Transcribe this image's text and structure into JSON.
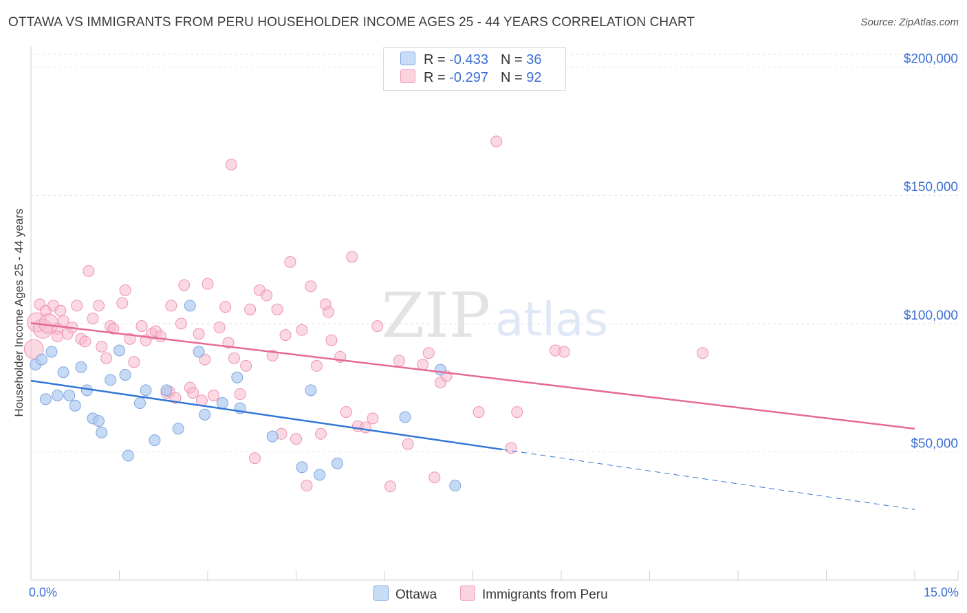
{
  "title": "OTTAWA VS IMMIGRANTS FROM PERU HOUSEHOLDER INCOME AGES 25 - 44 YEARS CORRELATION CHART",
  "source": "Source: ZipAtlas.com",
  "watermark": {
    "zip": "ZIP",
    "atlas": "atlas"
  },
  "legend": {
    "rows": [
      {
        "r_label": "R = ",
        "r_value": "-0.433",
        "n_label": "N = ",
        "n_value": "36",
        "color": "#aecbf2"
      },
      {
        "r_label": "R = ",
        "r_value": "-0.297",
        "n_label": "N = ",
        "n_value": "92",
        "color": "#f7b9cc"
      }
    ]
  },
  "bottom_legend": [
    "Ottawa",
    "Immigrants from Peru"
  ],
  "x_tick_labels": {
    "left": "0.0%",
    "right": "15.0%"
  },
  "chart_data": {
    "type": "scatter",
    "title": "OTTAWA VS IMMIGRANTS FROM PERU HOUSEHOLDER INCOME AGES 25 - 44 YEARS CORRELATION CHART",
    "xlabel": "",
    "ylabel": "Householder Income Ages 25 - 44 years",
    "xlim": [
      0,
      15
    ],
    "ylim": [
      0,
      205000
    ],
    "y_ticks": [
      50000,
      100000,
      150000,
      200000
    ],
    "y_tick_labels": [
      "$50,000",
      "$100,000",
      "$150,000",
      "$200,000"
    ],
    "grid": true,
    "series": [
      {
        "name": "Ottawa",
        "color": "#5b8fd9",
        "fill": "#aecbf2",
        "r": -0.433,
        "n": 36,
        "trend": {
          "x0": 0,
          "y0": 77700,
          "x1": 8.0,
          "y1": 50900,
          "dash_to_x": 15.0,
          "dash_to_y": 27500
        },
        "points": [
          [
            0.08,
            84000
          ],
          [
            0.18,
            86000
          ],
          [
            0.25,
            70500
          ],
          [
            0.35,
            89000
          ],
          [
            0.45,
            72000
          ],
          [
            0.55,
            81000
          ],
          [
            0.65,
            72000
          ],
          [
            0.75,
            68000
          ],
          [
            0.85,
            83000
          ],
          [
            0.95,
            74000
          ],
          [
            1.05,
            63000
          ],
          [
            1.15,
            62000
          ],
          [
            1.2,
            57500
          ],
          [
            1.35,
            78000
          ],
          [
            1.5,
            89500
          ],
          [
            1.6,
            80000
          ],
          [
            1.65,
            48500
          ],
          [
            1.85,
            69000
          ],
          [
            1.95,
            74000
          ],
          [
            2.1,
            54500
          ],
          [
            2.3,
            74000
          ],
          [
            2.5,
            59000
          ],
          [
            2.7,
            107000
          ],
          [
            2.85,
            89000
          ],
          [
            2.95,
            64500
          ],
          [
            3.25,
            69000
          ],
          [
            3.5,
            79000
          ],
          [
            3.55,
            67000
          ],
          [
            4.1,
            56000
          ],
          [
            4.6,
            44000
          ],
          [
            4.75,
            74000
          ],
          [
            4.9,
            41000
          ],
          [
            5.2,
            45500
          ],
          [
            6.35,
            63500
          ],
          [
            6.95,
            82000
          ],
          [
            7.2,
            36800
          ]
        ]
      },
      {
        "name": "Immigrants from Peru",
        "color": "#e96b95",
        "fill": "#f7b9cc",
        "r": -0.297,
        "n": 92,
        "trend": {
          "x0": 0,
          "y0": 100200,
          "x1": 15.0,
          "y1": 59000
        },
        "points": [
          [
            0.05,
            90000
          ],
          [
            0.1,
            100500
          ],
          [
            0.15,
            107500
          ],
          [
            0.2,
            98000
          ],
          [
            0.25,
            105000
          ],
          [
            0.3,
            100000
          ],
          [
            0.38,
            107000
          ],
          [
            0.45,
            98000
          ],
          [
            0.5,
            105000
          ],
          [
            0.55,
            101000
          ],
          [
            0.62,
            96000
          ],
          [
            0.7,
            98500
          ],
          [
            0.78,
            107000
          ],
          [
            0.85,
            94000
          ],
          [
            0.92,
            93000
          ],
          [
            0.98,
            120500
          ],
          [
            1.05,
            102000
          ],
          [
            1.15,
            107000
          ],
          [
            1.2,
            91000
          ],
          [
            1.28,
            86500
          ],
          [
            1.35,
            99000
          ],
          [
            1.4,
            98000
          ],
          [
            1.55,
            108000
          ],
          [
            1.6,
            113000
          ],
          [
            1.68,
            94000
          ],
          [
            1.75,
            85000
          ],
          [
            1.88,
            99000
          ],
          [
            1.95,
            93500
          ],
          [
            2.05,
            96000
          ],
          [
            2.12,
            97000
          ],
          [
            2.2,
            95000
          ],
          [
            2.3,
            73000
          ],
          [
            2.38,
            107000
          ],
          [
            2.45,
            71000
          ],
          [
            2.55,
            100000
          ],
          [
            2.6,
            115000
          ],
          [
            2.7,
            75000
          ],
          [
            2.75,
            73000
          ],
          [
            2.85,
            96000
          ],
          [
            2.9,
            70000
          ],
          [
            2.95,
            86000
          ],
          [
            3.0,
            115500
          ],
          [
            3.1,
            72000
          ],
          [
            3.2,
            98500
          ],
          [
            3.3,
            106500
          ],
          [
            3.35,
            92500
          ],
          [
            3.45,
            86500
          ],
          [
            3.55,
            72500
          ],
          [
            3.65,
            83500
          ],
          [
            3.72,
            105500
          ],
          [
            3.8,
            47500
          ],
          [
            3.88,
            113000
          ],
          [
            4.0,
            111000
          ],
          [
            4.1,
            87500
          ],
          [
            4.18,
            105500
          ],
          [
            4.25,
            57000
          ],
          [
            4.32,
            95500
          ],
          [
            4.4,
            124000
          ],
          [
            4.5,
            55000
          ],
          [
            4.6,
            97500
          ],
          [
            4.68,
            36800
          ],
          [
            4.75,
            114500
          ],
          [
            4.85,
            83500
          ],
          [
            4.92,
            57000
          ],
          [
            5.0,
            107500
          ],
          [
            5.05,
            104500
          ],
          [
            5.1,
            93500
          ],
          [
            5.25,
            87000
          ],
          [
            5.35,
            65500
          ],
          [
            5.45,
            126000
          ],
          [
            5.55,
            60000
          ],
          [
            5.68,
            59500
          ],
          [
            5.8,
            63000
          ],
          [
            5.88,
            99000
          ],
          [
            6.1,
            36500
          ],
          [
            6.25,
            85500
          ],
          [
            6.4,
            53000
          ],
          [
            6.65,
            84000
          ],
          [
            6.75,
            88500
          ],
          [
            6.85,
            40000
          ],
          [
            6.95,
            77000
          ],
          [
            7.05,
            79500
          ],
          [
            7.6,
            65500
          ],
          [
            7.9,
            171000
          ],
          [
            8.15,
            51500
          ],
          [
            8.25,
            65500
          ],
          [
            8.9,
            89500
          ],
          [
            9.05,
            89000
          ],
          [
            11.4,
            88500
          ],
          [
            3.4,
            162000
          ],
          [
            2.35,
            73500
          ],
          [
            0.45,
            95000
          ]
        ]
      }
    ]
  }
}
